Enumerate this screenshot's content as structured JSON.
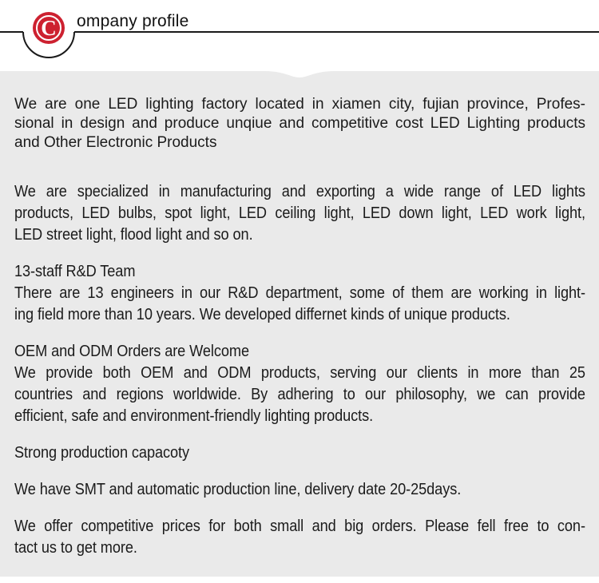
{
  "header": {
    "logo_letter": "C",
    "title_rest": "ompany profile",
    "brand_red": "#cd2130",
    "line_color": "#1a1a1a"
  },
  "panel": {
    "background": "#eaeaea"
  },
  "content": {
    "paragraphs": [
      {
        "font": "regular",
        "heading": false,
        "lines": [
          "We are one LED lighting factory located in xiamen city, fujian province, Profes-",
          "sional in design and produce unqiue and competitive cost LED Lighting products",
          "and Other Electronic Products"
        ]
      },
      {
        "font": "condensed",
        "heading": false,
        "lines": [
          "We are specialized in manufacturing and exporting a wide range of LED lights",
          "products, LED bulbs, spot light, LED ceiling light, LED down light, LED work light,",
          "LED street light, flood light and so on."
        ]
      },
      {
        "font": "condensed",
        "heading": true,
        "lines": [
          "13-staff R&D Team",
          "There are 13 engineers in our R&D department, some of them are working in light-",
          "ing field more than 10 years. We developed differnet kinds of unique products."
        ]
      },
      {
        "font": "condensed",
        "heading": true,
        "lines": [
          "OEM and ODM Orders are Welcome",
          "We provide both OEM and ODM products, serving our clients in more than 25",
          "countries and regions worldwide. By adhering to our philosophy, we can provide",
          "efficient, safe and environment-friendly lighting products."
        ]
      },
      {
        "font": "condensed",
        "heading": true,
        "lines": [
          "Strong production capacoty"
        ]
      },
      {
        "font": "condensed",
        "heading": false,
        "lines": [
          "We have SMT and automatic production line, delivery date 20-25days."
        ]
      },
      {
        "font": "condensed",
        "heading": false,
        "lines": [
          "We offer competitive prices for both small and big orders. Please fell free to con-",
          "tact us to get more."
        ]
      }
    ]
  }
}
